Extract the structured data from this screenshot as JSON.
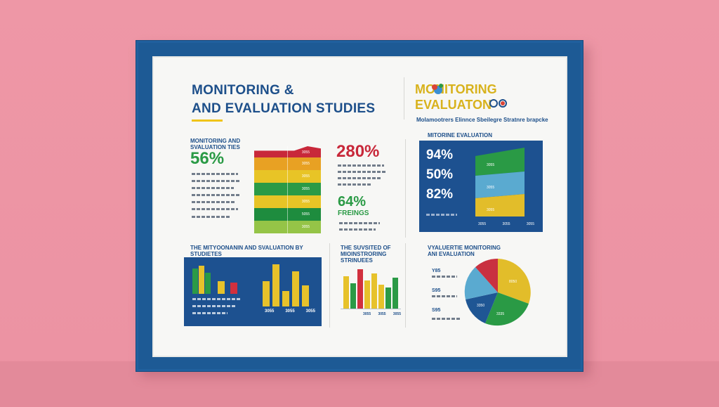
{
  "poster": {
    "title_line1": "MONITORING &",
    "title_line2": "AND EVALUATION STUDIES",
    "right_title_line1": "MONITORING",
    "right_title_line2": "EVALUATON",
    "right_subtitle": "Molamootrers Elinnce Sbeilegre Stratnre brapcke"
  },
  "stats_left": {
    "heading_line1": "MONITORING AND",
    "heading_line2": "SVALUATION TIES",
    "big_value": "56%"
  },
  "stats_mid": {
    "big_value_top": "280%",
    "big_value_bottom": "64%",
    "label": "FREINGS"
  },
  "stacked_bar": {
    "labels": [
      "3055",
      "3055",
      "3055",
      "3055",
      "3055",
      "5055",
      "3055"
    ],
    "colors": [
      "#c8283a",
      "#e8a123",
      "#e8c426",
      "#1e8c3e",
      "#e8c426",
      "#2f9a44",
      "#95c447"
    ]
  },
  "right_panel": {
    "heading": "MITORINE EVALUATION",
    "values": [
      "94%",
      "50%",
      "82%"
    ],
    "labels": [
      "3055",
      "3055",
      "3055"
    ],
    "ticks": [
      "3055",
      "3055",
      "3055"
    ]
  },
  "section_titles": {
    "bottom_left_line1": "THE MITYOONANIN AND SVALUATION BY",
    "bottom_left_line2": "STUDIETES",
    "bottom_mid_line1": "THE SUVSITED OF",
    "bottom_mid_line2": "MIOINSTRORING",
    "bottom_mid_line3": "STRINUEES",
    "bottom_right_line1": "VYALUERTIE MONITORING",
    "bottom_right_line2": "ANI EVALUATION"
  },
  "bottom_left_chart": {
    "tick_labels": [
      "3055",
      "3055",
      "3055"
    ],
    "colors": {
      "green": "#2b9a46",
      "yellow": "#e7c22b",
      "red": "#d1303e",
      "navy": "#1d5190"
    }
  },
  "bottom_mid_chart": {
    "tick_labels": [
      "3055",
      "3055",
      "3055"
    ]
  },
  "pie_chart": {
    "labels": [
      "Y85",
      "S95",
      "S95"
    ],
    "slice_labels": [
      "8050",
      "3350",
      "3335"
    ],
    "colors": [
      "#e2bd2a",
      "#2a9a45",
      "#1f5694",
      "#5aaad0",
      "#c93040"
    ]
  }
}
